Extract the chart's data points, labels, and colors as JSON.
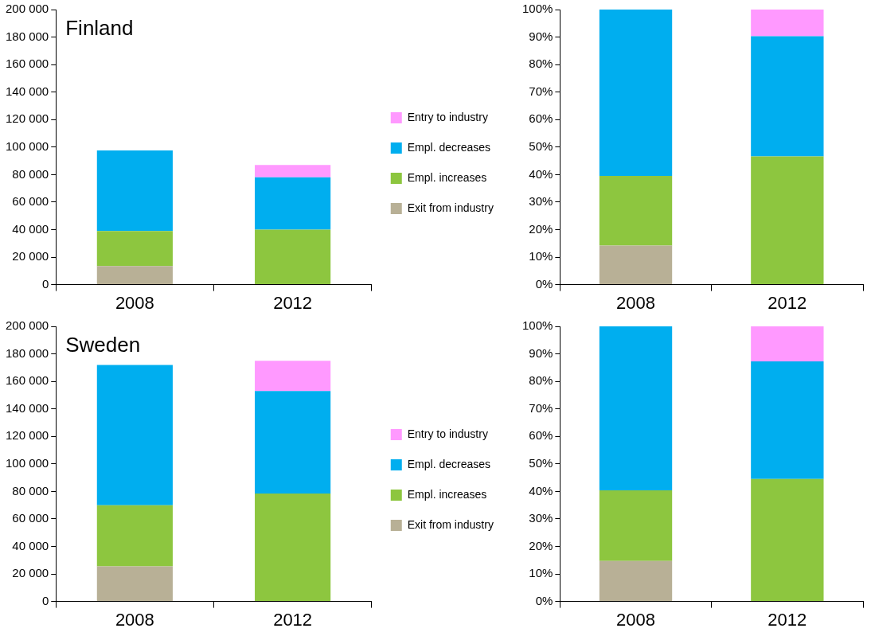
{
  "chart_data": [
    {
      "type": "bar",
      "stacked": true,
      "title": "Finland",
      "categories": [
        "2008",
        "2012"
      ],
      "series": [
        {
          "name": "Exit from industry",
          "color": "#b8b096",
          "values": [
            13500,
            null
          ]
        },
        {
          "name": "Empl. increases",
          "color": "#8dc63f",
          "values": [
            25500,
            40000
          ]
        },
        {
          "name": "Empl. decreases",
          "color": "#00aeef",
          "values": [
            58500,
            38000
          ]
        },
        {
          "name": "Entry to industry",
          "color": "#ff99ff",
          "values": [
            null,
            9000
          ]
        }
      ],
      "ylim": [
        0,
        200000
      ],
      "yticks": [
        0,
        {
          "value": 20000,
          "label": "20 000"
        },
        {
          "value": 40000,
          "label": "40 000"
        },
        {
          "value": 60000,
          "label": "60 000"
        },
        {
          "value": 80000,
          "label": "80 000"
        },
        {
          "value": 100000,
          "label": "100 000"
        },
        {
          "value": 120000,
          "label": "120 000"
        },
        {
          "value": 140000,
          "label": "140 000"
        },
        {
          "value": 160000,
          "label": "160 000"
        },
        {
          "value": 180000,
          "label": "180 000"
        },
        {
          "value": 200000,
          "label": "200 000"
        }
      ],
      "grid": false,
      "legend": "right"
    },
    {
      "type": "bar",
      "stacked": true,
      "categories": [
        "2008",
        "2012"
      ],
      "series": [
        {
          "color": "#b8b096",
          "values": [
            14.2,
            null
          ]
        },
        {
          "color": "#8dc63f",
          "values": [
            25.3,
            46.6
          ]
        },
        {
          "color": "#00aeef",
          "values": [
            60.5,
            43.7
          ]
        },
        {
          "color": "#ff99ff",
          "values": [
            null,
            9.7
          ]
        }
      ],
      "ylim": [
        0,
        100
      ],
      "yticks": [
        {
          "value": 0,
          "label": "0%"
        },
        {
          "value": 10,
          "label": "10%"
        },
        {
          "value": 20,
          "label": "20%"
        },
        {
          "value": 30,
          "label": "30%"
        },
        {
          "value": 40,
          "label": "40%"
        },
        {
          "value": 50,
          "label": "50%"
        },
        {
          "value": 60,
          "label": "60%"
        },
        {
          "value": 70,
          "label": "70%"
        },
        {
          "value": 80,
          "label": "80%"
        },
        {
          "value": 90,
          "label": "90%"
        },
        {
          "value": 100,
          "label": "100%"
        }
      ],
      "grid": false
    },
    {
      "type": "bar",
      "stacked": true,
      "title": "Sweden",
      "categories": [
        "2008",
        "2012"
      ],
      "series": [
        {
          "name": "Exit from industry",
          "color": "#b8b096",
          "values": [
            25500,
            null
          ]
        },
        {
          "name": "Empl. increases",
          "color": "#8dc63f",
          "values": [
            44500,
            78500
          ]
        },
        {
          "name": "Empl. decreases",
          "color": "#00aeef",
          "values": [
            102000,
            74500
          ]
        },
        {
          "name": "Entry to industry",
          "color": "#ff99ff",
          "values": [
            null,
            22000
          ]
        }
      ],
      "ylim": [
        0,
        200000
      ],
      "yticks": [
        0,
        {
          "value": 20000,
          "label": "20 000"
        },
        {
          "value": 40000,
          "label": "40 000"
        },
        {
          "value": 60000,
          "label": "60 000"
        },
        {
          "value": 80000,
          "label": "80 000"
        },
        {
          "value": 100000,
          "label": "100 000"
        },
        {
          "value": 120000,
          "label": "120 000"
        },
        {
          "value": 140000,
          "label": "140 000"
        },
        {
          "value": 160000,
          "label": "160 000"
        },
        {
          "value": 180000,
          "label": "180 000"
        },
        {
          "value": 200000,
          "label": "200 000"
        }
      ],
      "grid": false,
      "legend": "right"
    },
    {
      "type": "bar",
      "stacked": true,
      "categories": [
        "2008",
        "2012"
      ],
      "series": [
        {
          "color": "#b8b096",
          "values": [
            14.7,
            null
          ]
        },
        {
          "color": "#8dc63f",
          "values": [
            25.7,
            44.5
          ]
        },
        {
          "color": "#00aeef",
          "values": [
            59.6,
            42.8
          ]
        },
        {
          "color": "#ff99ff",
          "values": [
            null,
            12.7
          ]
        }
      ],
      "ylim": [
        0,
        100
      ],
      "yticks": [
        {
          "value": 0,
          "label": "0%"
        },
        {
          "value": 10,
          "label": "10%"
        },
        {
          "value": 20,
          "label": "20%"
        },
        {
          "value": 30,
          "label": "30%"
        },
        {
          "value": 40,
          "label": "40%"
        },
        {
          "value": 50,
          "label": "50%"
        },
        {
          "value": 60,
          "label": "60%"
        },
        {
          "value": 70,
          "label": "70%"
        },
        {
          "value": 80,
          "label": "80%"
        },
        {
          "value": 90,
          "label": "90%"
        },
        {
          "value": 100,
          "label": "100%"
        }
      ],
      "grid": false
    }
  ]
}
